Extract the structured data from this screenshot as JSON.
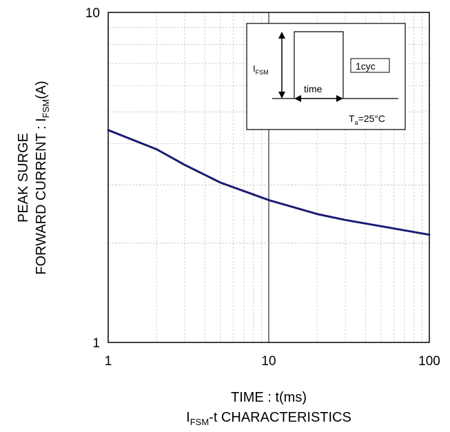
{
  "chart_data": {
    "type": "line",
    "title": "",
    "xlabel": "TIME : t(ms)",
    "ylabel": {
      "line1": "PEAK SURGE",
      "line2_main": "FORWARD CURRENT : I",
      "line2_sub": "FSM",
      "line2_tail": "(A)"
    },
    "caption": {
      "main": "I",
      "sub": "FSM",
      "tail": "-t CHARACTERISTICS"
    },
    "xscale": "log",
    "yscale": "log",
    "xlim": [
      1,
      100
    ],
    "ylim": [
      1,
      10
    ],
    "x_ticks": [
      {
        "value": 1,
        "label": "1"
      },
      {
        "value": 10,
        "label": "10"
      },
      {
        "value": 100,
        "label": "100"
      }
    ],
    "y_ticks": [
      {
        "value": 1,
        "label": "1"
      },
      {
        "value": 10,
        "label": "10"
      }
    ],
    "grid": true,
    "line_color": "#1a1a73",
    "series": [
      {
        "x": [
          1,
          2,
          3,
          5,
          10,
          20,
          30,
          50,
          100
        ],
        "y": [
          4.4,
          3.85,
          3.45,
          3.05,
          2.7,
          2.45,
          2.35,
          2.25,
          2.12
        ]
      }
    ],
    "inset": {
      "ifsm_main": "I",
      "ifsm_sub": "FSM",
      "time_label": "time",
      "cycle_label": "1cyc",
      "ta_main": "T",
      "ta_sub": "a",
      "ta_tail": "=25°C"
    }
  }
}
